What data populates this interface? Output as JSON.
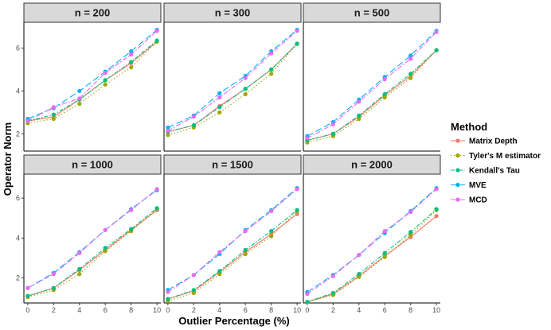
{
  "chart_data": {
    "type": "line",
    "facet_var": "n",
    "x": [
      0,
      2,
      4,
      6,
      8,
      10
    ],
    "xlabel": "Outlier Percentage (%)",
    "ylabel": "Operator Norm",
    "x_ticks": [
      0,
      2,
      4,
      6,
      8,
      10
    ],
    "y_ticks": [
      2,
      4,
      6
    ],
    "xlim": [
      -0.3,
      10.3
    ],
    "ylim": [
      1.2,
      7.2
    ],
    "ylim_bottom_row": [
      0.75,
      7.2
    ],
    "legend": {
      "title": "Method",
      "position": "right",
      "entries": [
        "Matrix Depth",
        "Tyler's M estimator",
        "Kendall's Tau",
        "MVE",
        "MCD"
      ]
    },
    "series_styles": [
      {
        "name": "Matrix Depth",
        "color": "#F8766D",
        "dash": "solid"
      },
      {
        "name": "Tyler's M estimator",
        "color": "#A3A500",
        "dash": "dotted"
      },
      {
        "name": "Kendall's Tau",
        "color": "#00BF7D",
        "dash": "dashdot"
      },
      {
        "name": "MVE",
        "color": "#00B0F6",
        "dash": "longdash"
      },
      {
        "name": "MCD",
        "color": "#E76BF3",
        "dash": "twodash"
      }
    ],
    "panels": [
      {
        "title": "n = 200",
        "series": [
          {
            "name": "Matrix Depth",
            "values": [
              2.6,
              2.8,
              3.6,
              4.5,
              5.3,
              6.3
            ]
          },
          {
            "name": "Tyler's M estimator",
            "values": [
              2.5,
              2.7,
              3.4,
              4.3,
              5.1,
              6.3
            ]
          },
          {
            "name": "Kendall's Tau",
            "values": [
              2.6,
              2.9,
              3.6,
              4.5,
              5.35,
              6.35
            ]
          },
          {
            "name": "MVE",
            "values": [
              2.7,
              3.2,
              4.0,
              4.9,
              5.85,
              6.85
            ]
          },
          {
            "name": "MCD",
            "values": [
              2.6,
              3.25,
              3.65,
              4.85,
              5.7,
              6.8
            ]
          }
        ]
      },
      {
        "title": "n = 300",
        "series": [
          {
            "name": "Matrix Depth",
            "values": [
              2.1,
              2.4,
              3.3,
              4.1,
              5.0,
              6.2
            ]
          },
          {
            "name": "Tyler's M estimator",
            "values": [
              1.95,
              2.3,
              3.0,
              3.85,
              4.8,
              6.2
            ]
          },
          {
            "name": "Kendall's Tau",
            "values": [
              2.1,
              2.4,
              3.25,
              4.1,
              5.0,
              6.2
            ]
          },
          {
            "name": "MVE",
            "values": [
              2.3,
              2.85,
              3.9,
              4.7,
              5.85,
              6.85
            ]
          },
          {
            "name": "MCD",
            "values": [
              2.15,
              2.8,
              3.7,
              4.6,
              5.75,
              6.8
            ]
          }
        ]
      },
      {
        "title": "n = 500",
        "series": [
          {
            "name": "Matrix Depth",
            "values": [
              1.7,
              2.0,
              2.8,
              3.8,
              4.7,
              5.9
            ]
          },
          {
            "name": "Tyler's M estimator",
            "values": [
              1.6,
              1.9,
              2.7,
              3.7,
              4.6,
              5.9
            ]
          },
          {
            "name": "Kendall's Tau",
            "values": [
              1.7,
              2.0,
              2.85,
              3.85,
              4.8,
              5.9
            ]
          },
          {
            "name": "MVE",
            "values": [
              1.9,
              2.55,
              3.6,
              4.65,
              5.65,
              6.8
            ]
          },
          {
            "name": "MCD",
            "values": [
              1.8,
              2.45,
              3.5,
              4.55,
              5.5,
              6.75
            ]
          }
        ]
      },
      {
        "title": "n = 1000",
        "series": [
          {
            "name": "Matrix Depth",
            "values": [
              1.1,
              1.5,
              2.4,
              3.4,
              4.4,
              5.4
            ]
          },
          {
            "name": "Tyler's M estimator",
            "values": [
              1.05,
              1.4,
              2.2,
              3.35,
              4.35,
              5.45
            ]
          },
          {
            "name": "Kendall's Tau",
            "values": [
              1.1,
              1.5,
              2.45,
              3.5,
              4.45,
              5.5
            ]
          },
          {
            "name": "MVE",
            "values": [
              1.5,
              2.25,
              3.3,
              4.4,
              5.45,
              6.4
            ]
          },
          {
            "name": "MCD",
            "values": [
              1.5,
              2.2,
              3.25,
              4.4,
              5.4,
              6.45
            ]
          }
        ]
      },
      {
        "title": "n = 1500",
        "series": [
          {
            "name": "Matrix Depth",
            "values": [
              0.95,
              1.35,
              2.3,
              3.3,
              4.2,
              5.2
            ]
          },
          {
            "name": "Tyler's M estimator",
            "values": [
              0.85,
              1.25,
              2.2,
              3.2,
              4.1,
              5.35
            ]
          },
          {
            "name": "Kendall's Tau",
            "values": [
              0.95,
              1.4,
              2.35,
              3.4,
              4.35,
              5.4
            ]
          },
          {
            "name": "MVE",
            "values": [
              1.4,
              2.15,
              3.2,
              4.4,
              5.4,
              6.5
            ]
          },
          {
            "name": "MCD",
            "values": [
              1.3,
              2.15,
              3.3,
              4.35,
              5.35,
              6.45
            ]
          }
        ]
      },
      {
        "title": "n = 2000",
        "series": [
          {
            "name": "Matrix Depth",
            "values": [
              0.8,
              1.2,
              2.1,
              3.1,
              4.05,
              5.1
            ]
          },
          {
            "name": "Tyler's M estimator",
            "values": [
              0.8,
              1.15,
              2.05,
              3.05,
              4.15,
              5.4
            ]
          },
          {
            "name": "Kendall's Tau",
            "values": [
              0.8,
              1.25,
              2.2,
              3.25,
              4.3,
              5.45
            ]
          },
          {
            "name": "MVE",
            "values": [
              1.3,
              2.15,
              3.15,
              4.25,
              5.35,
              6.5
            ]
          },
          {
            "name": "MCD",
            "values": [
              1.2,
              2.1,
              3.15,
              4.35,
              5.3,
              6.45
            ]
          }
        ]
      }
    ]
  }
}
